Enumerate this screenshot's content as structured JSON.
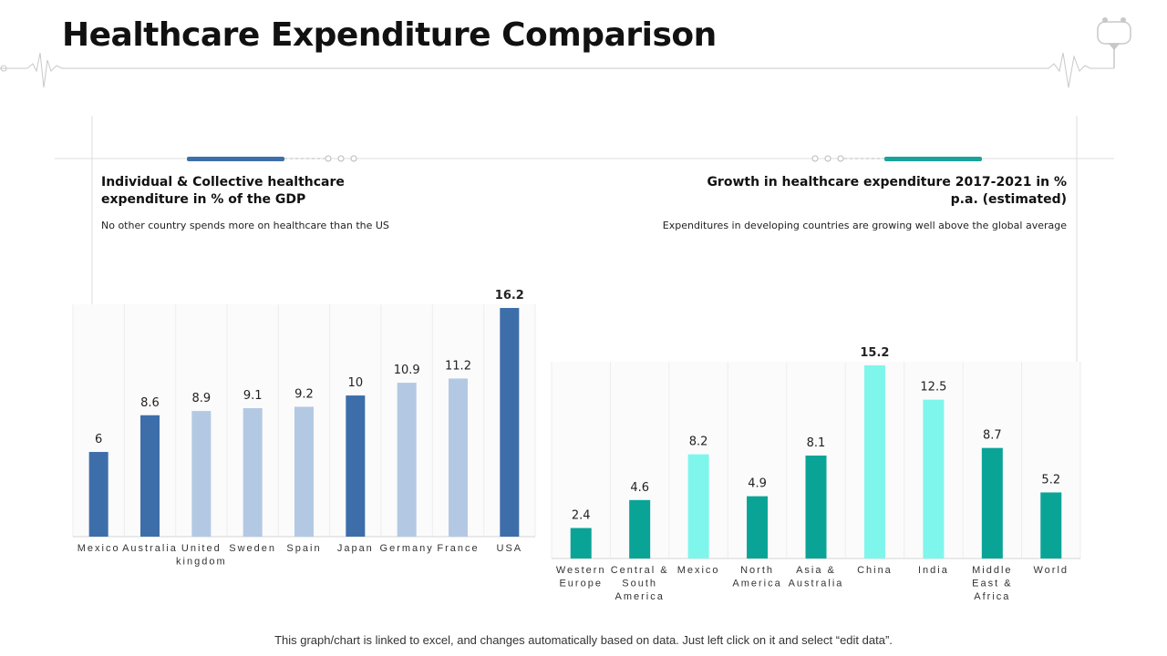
{
  "header": {
    "title": "Healthcare Expenditure Comparison"
  },
  "left_chart": {
    "title": "Individual & Collective healthcare expenditure in % of the GDP",
    "subtitle": "No other country spends more on healthcare than the US"
  },
  "right_chart": {
    "title": "Growth in healthcare expenditure 2017-2021 in % p.a. (estimated)",
    "subtitle": "Expenditures in developing countries are growing well above the global average"
  },
  "footer": {
    "note": "This graph/chart is linked to excel, and changes automatically based on data. Just left click on it and select “edit data”."
  },
  "colors": {
    "dark_blue": "#3d6eaa",
    "light_blue": "#b3c9e3",
    "teal": "#0aa497",
    "aqua": "#7ff6ec",
    "accent_blue": "#3f6fa8",
    "accent_teal": "#1aa39a"
  },
  "chart_data": [
    {
      "type": "bar",
      "title": "Individual & Collective healthcare expenditure in % of the GDP",
      "xlabel": "",
      "ylabel": "",
      "categories": [
        "Mexico",
        "Australia",
        "United kingdom",
        "Sweden",
        "Spain",
        "Japan",
        "Germany",
        "France",
        "USA"
      ],
      "values": [
        6,
        8.6,
        8.9,
        9.1,
        9.2,
        10,
        10.9,
        11.2,
        16.2
      ],
      "labels": [
        "6",
        "8.6",
        "8.9",
        "9.1",
        "9.2",
        "10",
        "10.9",
        "11.2",
        "16.2"
      ],
      "bar_colors": [
        "#3d6eaa",
        "#3d6eaa",
        "#b3c9e3",
        "#b3c9e3",
        "#b3c9e3",
        "#3d6eaa",
        "#b3c9e3",
        "#b3c9e3",
        "#3d6eaa"
      ],
      "highlight": "USA",
      "ylim": [
        0,
        16.2
      ]
    },
    {
      "type": "bar",
      "title": "Growth in healthcare expenditure 2017-2021 in % p.a. (estimated)",
      "xlabel": "",
      "ylabel": "",
      "categories": [
        "Western Europe",
        "Central & South America",
        "Mexico",
        "North America",
        "Asia & Australia",
        "China",
        "India",
        "Middle East & Africa",
        "World"
      ],
      "values": [
        2.4,
        4.6,
        8.2,
        4.9,
        8.1,
        15.2,
        12.5,
        8.7,
        5.2
      ],
      "labels": [
        "2.4",
        "4.6",
        "8.2",
        "4.9",
        "8.1",
        "15.2",
        "12.5",
        "8.7",
        "5.2"
      ],
      "bar_colors": [
        "#0aa497",
        "#0aa497",
        "#7ff6ec",
        "#0aa497",
        "#0aa497",
        "#7ff6ec",
        "#7ff6ec",
        "#0aa497",
        "#0aa497"
      ],
      "highlight": "China",
      "ylim": [
        0,
        15.2
      ]
    }
  ]
}
